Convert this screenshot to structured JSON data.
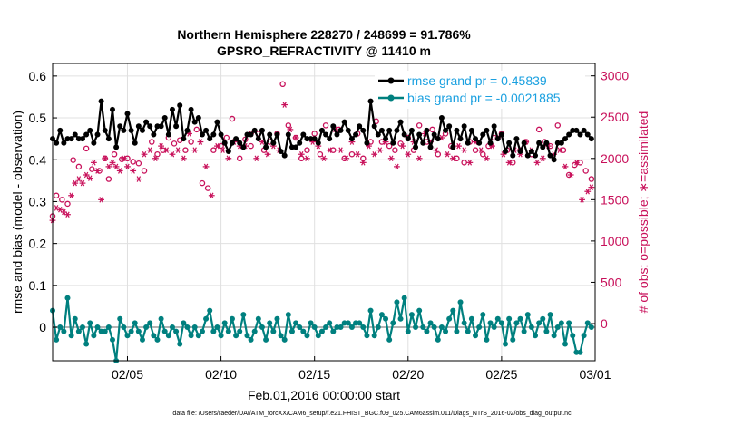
{
  "chart_data": {
    "type": "line",
    "title_line1": "Northern Hemisphere 228270 / 248699 = 91.786%",
    "title_line2": "GPSRO_REFRACTIVITY @ 11410 m",
    "xlabel": "Feb.01,2016 00:00:00 start",
    "ylabel": "rmse and bias (model - observation)",
    "y2label": "# of obs: o=possible; ∗=assimilated",
    "footer": "data file: /Users/raeder/DAI/ATM_forcXX/CAM6_setup/f.e21.FHIST_BGC.f09_025.CAM6assim.011/Diags_NTrS_2016-02/obs_diag_output.nc",
    "xlim": [
      1,
      30
    ],
    "xticks": [
      {
        "x": 5,
        "label": "02/05"
      },
      {
        "x": 10,
        "label": "02/10"
      },
      {
        "x": 15,
        "label": "02/15"
      },
      {
        "x": 20,
        "label": "02/20"
      },
      {
        "x": 25,
        "label": "02/25"
      },
      {
        "x": 30,
        "label": "03/01"
      }
    ],
    "ylim": [
      -0.08,
      0.63
    ],
    "yticks": [
      {
        "v": 0,
        "label": "0"
      },
      {
        "v": 0.1,
        "label": "0.1"
      },
      {
        "v": 0.2,
        "label": "0.2"
      },
      {
        "v": 0.3,
        "label": "0.3"
      },
      {
        "v": 0.4,
        "label": "0.4"
      },
      {
        "v": 0.5,
        "label": "0.5"
      },
      {
        "v": 0.6,
        "label": "0.6"
      }
    ],
    "y2lim": [
      -450,
      3150
    ],
    "y2ticks": [
      {
        "v": 0,
        "label": "0"
      },
      {
        "v": 500,
        "label": "500"
      },
      {
        "v": 1000,
        "label": "1000"
      },
      {
        "v": 1500,
        "label": "1500"
      },
      {
        "v": 2000,
        "label": "2000"
      },
      {
        "v": 2500,
        "label": "2500"
      },
      {
        "v": 3000,
        "label": "3000"
      }
    ],
    "grid": true,
    "legend_position": "top-right",
    "colors": {
      "rmse": "#000000",
      "bias": "#00807f",
      "obs": "#c8105a",
      "legend_text": "#1aa0e0",
      "zero_line": "#b4b4b4",
      "grid": "#e0e0e0"
    },
    "series": [
      {
        "name": "rmse grand pr = 0.45839",
        "key": "rmse",
        "x": [
          1.0,
          1.2,
          1.4,
          1.6,
          1.8,
          2.0,
          2.2,
          2.4,
          2.6,
          2.8,
          3.0,
          3.2,
          3.4,
          3.6,
          3.8,
          4.0,
          4.2,
          4.4,
          4.6,
          4.8,
          5.0,
          5.2,
          5.4,
          5.6,
          5.8,
          6.0,
          6.2,
          6.4,
          6.6,
          6.8,
          7.0,
          7.2,
          7.4,
          7.6,
          7.8,
          8.0,
          8.2,
          8.4,
          8.6,
          8.8,
          9.0,
          9.2,
          9.4,
          9.6,
          9.8,
          10.0,
          10.2,
          10.4,
          10.6,
          10.8,
          11.0,
          11.2,
          11.4,
          11.6,
          11.8,
          12.0,
          12.2,
          12.4,
          12.6,
          12.8,
          13.0,
          13.2,
          13.4,
          13.6,
          13.8,
          14.0,
          14.2,
          14.4,
          14.6,
          14.8,
          15.0,
          15.2,
          15.4,
          15.6,
          15.8,
          16.0,
          16.2,
          16.4,
          16.6,
          16.8,
          17.0,
          17.2,
          17.4,
          17.6,
          17.8,
          18.0,
          18.2,
          18.4,
          18.6,
          18.8,
          19.0,
          19.2,
          19.4,
          19.6,
          19.8,
          20.0,
          20.2,
          20.4,
          20.6,
          20.8,
          21.0,
          21.2,
          21.4,
          21.6,
          21.8,
          22.0,
          22.2,
          22.4,
          22.6,
          22.8,
          23.0,
          23.2,
          23.4,
          23.6,
          23.8,
          24.0,
          24.2,
          24.4,
          24.6,
          24.8,
          25.0,
          25.2,
          25.4,
          25.6,
          25.8,
          26.0,
          26.2,
          26.4,
          26.6,
          26.8,
          27.0,
          27.2,
          27.4,
          27.6,
          27.8,
          28.0,
          28.2,
          28.4,
          28.6,
          28.8,
          29.0,
          29.2,
          29.4,
          29.6,
          29.8
        ],
        "values": [
          0.45,
          0.44,
          0.47,
          0.44,
          0.45,
          0.45,
          0.46,
          0.45,
          0.45,
          0.46,
          0.47,
          0.44,
          0.46,
          0.54,
          0.47,
          0.45,
          0.52,
          0.43,
          0.48,
          0.47,
          0.51,
          0.47,
          0.44,
          0.48,
          0.47,
          0.49,
          0.48,
          0.46,
          0.48,
          0.48,
          0.5,
          0.46,
          0.52,
          0.48,
          0.53,
          0.45,
          0.47,
          0.52,
          0.49,
          0.5,
          0.46,
          0.47,
          0.45,
          0.46,
          0.49,
          0.46,
          0.44,
          0.42,
          0.44,
          0.45,
          0.44,
          0.43,
          0.46,
          0.46,
          0.47,
          0.45,
          0.47,
          0.43,
          0.46,
          0.44,
          0.46,
          0.42,
          0.41,
          0.46,
          0.43,
          0.43,
          0.44,
          0.46,
          0.45,
          0.45,
          0.45,
          0.44,
          0.47,
          0.46,
          0.45,
          0.48,
          0.46,
          0.47,
          0.49,
          0.47,
          0.45,
          0.46,
          0.48,
          0.47,
          0.44,
          0.54,
          0.48,
          0.46,
          0.47,
          0.45,
          0.47,
          0.44,
          0.47,
          0.49,
          0.46,
          0.45,
          0.47,
          0.43,
          0.46,
          0.44,
          0.47,
          0.43,
          0.46,
          0.45,
          0.5,
          0.47,
          0.48,
          0.43,
          0.47,
          0.45,
          0.48,
          0.44,
          0.47,
          0.45,
          0.44,
          0.46,
          0.47,
          0.44,
          0.48,
          0.45,
          0.46,
          0.42,
          0.44,
          0.41,
          0.45,
          0.42,
          0.44,
          0.41,
          0.42,
          0.41,
          0.44,
          0.43,
          0.44,
          0.41,
          0.4,
          0.44,
          0.44,
          0.45,
          0.46,
          0.47,
          0.47,
          0.46,
          0.47,
          0.46,
          0.45
        ]
      },
      {
        "name": "bias grand pr = -0.0021885",
        "key": "bias",
        "x": [
          1.0,
          1.2,
          1.4,
          1.6,
          1.8,
          2.0,
          2.2,
          2.4,
          2.6,
          2.8,
          3.0,
          3.2,
          3.4,
          3.6,
          3.8,
          4.0,
          4.2,
          4.4,
          4.6,
          4.8,
          5.0,
          5.2,
          5.4,
          5.6,
          5.8,
          6.0,
          6.2,
          6.4,
          6.6,
          6.8,
          7.0,
          7.2,
          7.4,
          7.6,
          7.8,
          8.0,
          8.2,
          8.4,
          8.6,
          8.8,
          9.0,
          9.2,
          9.4,
          9.6,
          9.8,
          10.0,
          10.2,
          10.4,
          10.6,
          10.8,
          11.0,
          11.2,
          11.4,
          11.6,
          11.8,
          12.0,
          12.2,
          12.4,
          12.6,
          12.8,
          13.0,
          13.2,
          13.4,
          13.6,
          13.8,
          14.0,
          14.2,
          14.4,
          14.6,
          14.8,
          15.0,
          15.2,
          15.4,
          15.6,
          15.8,
          16.0,
          16.2,
          16.4,
          16.6,
          16.8,
          17.0,
          17.2,
          17.4,
          17.6,
          17.8,
          18.0,
          18.2,
          18.4,
          18.6,
          18.8,
          19.0,
          19.2,
          19.4,
          19.6,
          19.8,
          20.0,
          20.2,
          20.4,
          20.6,
          20.8,
          21.0,
          21.2,
          21.4,
          21.6,
          21.8,
          22.0,
          22.2,
          22.4,
          22.6,
          22.8,
          23.0,
          23.2,
          23.4,
          23.6,
          23.8,
          24.0,
          24.2,
          24.4,
          24.6,
          24.8,
          25.0,
          25.2,
          25.4,
          25.6,
          25.8,
          26.0,
          26.2,
          26.4,
          26.6,
          26.8,
          27.0,
          27.2,
          27.4,
          27.6,
          27.8,
          28.0,
          28.2,
          28.4,
          28.6,
          28.8,
          29.0,
          29.2,
          29.4,
          29.6,
          29.8
        ],
        "values": [
          0.04,
          -0.03,
          0.0,
          -0.01,
          0.07,
          -0.02,
          0.02,
          -0.01,
          0.0,
          -0.04,
          0.01,
          -0.02,
          0.0,
          -0.01,
          -0.01,
          0.0,
          -0.03,
          -0.08,
          0.02,
          0.0,
          -0.02,
          -0.01,
          0.01,
          -0.01,
          -0.03,
          0.0,
          0.01,
          -0.02,
          -0.03,
          0.02,
          -0.01,
          -0.02,
          0.0,
          -0.01,
          -0.04,
          0.01,
          0.0,
          -0.02,
          0.0,
          -0.02,
          -0.01,
          0.02,
          0.04,
          -0.01,
          0.0,
          -0.02,
          0.01,
          -0.01,
          0.02,
          -0.02,
          -0.01,
          0.03,
          -0.02,
          -0.03,
          -0.01,
          0.02,
          0.0,
          -0.03,
          0.01,
          -0.01,
          0.02,
          -0.02,
          -0.03,
          0.03,
          -0.01,
          0.01,
          0.0,
          -0.01,
          -0.02,
          0.01,
          0.0,
          -0.02,
          -0.01,
          0.0,
          0.01,
          -0.01,
          0.0,
          0.0,
          0.01,
          0.01,
          0.0,
          0.01,
          0.01,
          0.0,
          -0.02,
          0.04,
          -0.02,
          0.0,
          0.03,
          0.02,
          -0.03,
          0.01,
          0.06,
          0.02,
          0.07,
          -0.01,
          0.03,
          0.0,
          0.04,
          0.0,
          -0.01,
          0.01,
          0.0,
          -0.03,
          0.0,
          -0.01,
          0.02,
          0.04,
          -0.01,
          0.06,
          0.01,
          -0.01,
          0.02,
          -0.02,
          0.0,
          0.03,
          -0.03,
          0.01,
          0.0,
          0.02,
          0.01,
          -0.04,
          0.02,
          -0.03,
          0.01,
          0.02,
          -0.01,
          0.03,
          0.0,
          -0.02,
          0.01,
          0.02,
          -0.01,
          0.03,
          -0.02,
          0.0,
          0.01,
          -0.04,
          0.01,
          -0.02,
          -0.06,
          -0.06,
          -0.02,
          0.01,
          0.0
        ]
      },
      {
        "name": "possible",
        "key": "possible",
        "marker": "circle",
        "x": [
          1.0,
          1.2,
          1.5,
          1.8,
          2.1,
          2.4,
          2.8,
          3.1,
          3.5,
          3.8,
          4.0,
          4.3,
          4.7,
          5.0,
          5.3,
          5.6,
          5.9,
          6.3,
          6.6,
          6.9,
          7.2,
          7.5,
          7.8,
          8.1,
          8.4,
          8.7,
          9.0,
          9.3,
          9.6,
          10.0,
          10.3,
          10.6,
          11.0,
          11.3,
          11.6,
          12.0,
          12.3,
          12.6,
          13.0,
          13.3,
          13.6,
          14.0,
          14.3,
          14.6,
          15.0,
          15.3,
          15.6,
          16.0,
          16.3,
          16.6,
          17.0,
          17.3,
          17.6,
          18.0,
          18.3,
          18.6,
          19.0,
          19.3,
          19.6,
          20.0,
          20.3,
          20.6,
          21.0,
          21.3,
          21.6,
          22.0,
          22.3,
          22.6,
          23.0,
          23.3,
          23.6,
          24.0,
          24.3,
          24.6,
          25.0,
          25.3,
          25.6,
          26.0,
          26.3,
          26.6,
          27.0,
          27.3,
          27.6,
          28.0,
          28.3,
          28.6,
          28.9,
          29.2,
          29.5,
          29.8
        ],
        "values": [
          1300,
          1550,
          1500,
          1450,
          1980,
          1900,
          2120,
          1870,
          1850,
          2000,
          1750,
          2050,
          1990,
          2000,
          1960,
          1940,
          1850,
          2200,
          2050,
          2100,
          2250,
          2180,
          2220,
          2100,
          2200,
          2350,
          1700,
          1640,
          2100,
          2150,
          2250,
          2480,
          2000,
          2230,
          2150,
          2300,
          2100,
          2200,
          2300,
          2900,
          2400,
          2250,
          2000,
          2100,
          2300,
          2050,
          2400,
          2100,
          2350,
          2000,
          2050,
          2300,
          2000,
          2200,
          2450,
          2200,
          2150,
          2100,
          2180,
          2250,
          2100,
          2400,
          2200,
          2350,
          2050,
          2300,
          2150,
          2000,
          1950,
          2200,
          2100,
          2050,
          2150,
          2250,
          2300,
          2100,
          1950,
          2100,
          2200,
          2050,
          2350,
          2200,
          2150,
          2400,
          2100,
          1800,
          1920,
          1950,
          1850,
          1750
        ]
      },
      {
        "name": "assimilated",
        "key": "assimilated",
        "marker": "asterisk",
        "x": [
          1.0,
          1.2,
          1.4,
          1.6,
          1.8,
          2.0,
          2.2,
          2.4,
          2.6,
          2.8,
          3.0,
          3.2,
          3.4,
          3.6,
          3.8,
          4.0,
          4.2,
          4.4,
          4.6,
          4.8,
          5.0,
          5.3,
          5.6,
          5.9,
          6.2,
          6.5,
          6.8,
          7.1,
          7.4,
          7.7,
          8.0,
          8.3,
          8.6,
          8.9,
          9.2,
          9.5,
          9.8,
          10.1,
          10.4,
          10.7,
          11.0,
          11.3,
          11.6,
          11.9,
          12.2,
          12.5,
          12.8,
          13.1,
          13.4,
          13.7,
          14.0,
          14.3,
          14.6,
          14.9,
          15.2,
          15.5,
          15.8,
          16.1,
          16.4,
          16.7,
          17.0,
          17.3,
          17.6,
          17.9,
          18.2,
          18.5,
          18.8,
          19.1,
          19.4,
          19.7,
          20.0,
          20.3,
          20.6,
          20.9,
          21.2,
          21.5,
          21.8,
          22.1,
          22.4,
          22.7,
          23.0,
          23.3,
          23.6,
          23.9,
          24.2,
          24.5,
          24.8,
          25.1,
          25.4,
          25.7,
          26.0,
          26.3,
          26.6,
          26.9,
          27.2,
          27.5,
          27.8,
          28.1,
          28.4,
          28.7,
          29.0,
          29.3,
          29.6,
          29.8
        ],
        "values": [
          1250,
          1400,
          1380,
          1350,
          1320,
          1550,
          1700,
          1750,
          1700,
          1800,
          1760,
          1950,
          1850,
          1500,
          2000,
          1900,
          1950,
          1900,
          1850,
          2000,
          1900,
          1850,
          1750,
          2050,
          2100,
          2000,
          2150,
          2100,
          2050,
          2100,
          2000,
          2300,
          2100,
          2200,
          1900,
          1550,
          2150,
          2100,
          2000,
          2200,
          2150,
          2150,
          2300,
          2000,
          2200,
          2050,
          2150,
          2100,
          2650,
          2350,
          2250,
          2050,
          2000,
          2200,
          2150,
          2000,
          2100,
          2350,
          2100,
          2000,
          2200,
          2050,
          1950,
          2150,
          2050,
          2100,
          2200,
          2000,
          1900,
          2150,
          2050,
          2200,
          2000,
          2300,
          2200,
          2100,
          2250,
          2050,
          2000,
          2150,
          2100,
          1950,
          2200,
          2100,
          2000,
          2150,
          2250,
          2050,
          1950,
          2100,
          2050,
          2200,
          2100,
          1950,
          2000,
          2150,
          2050,
          2100,
          1900,
          1800,
          1950,
          1500,
          1600,
          1650
        ]
      }
    ]
  }
}
